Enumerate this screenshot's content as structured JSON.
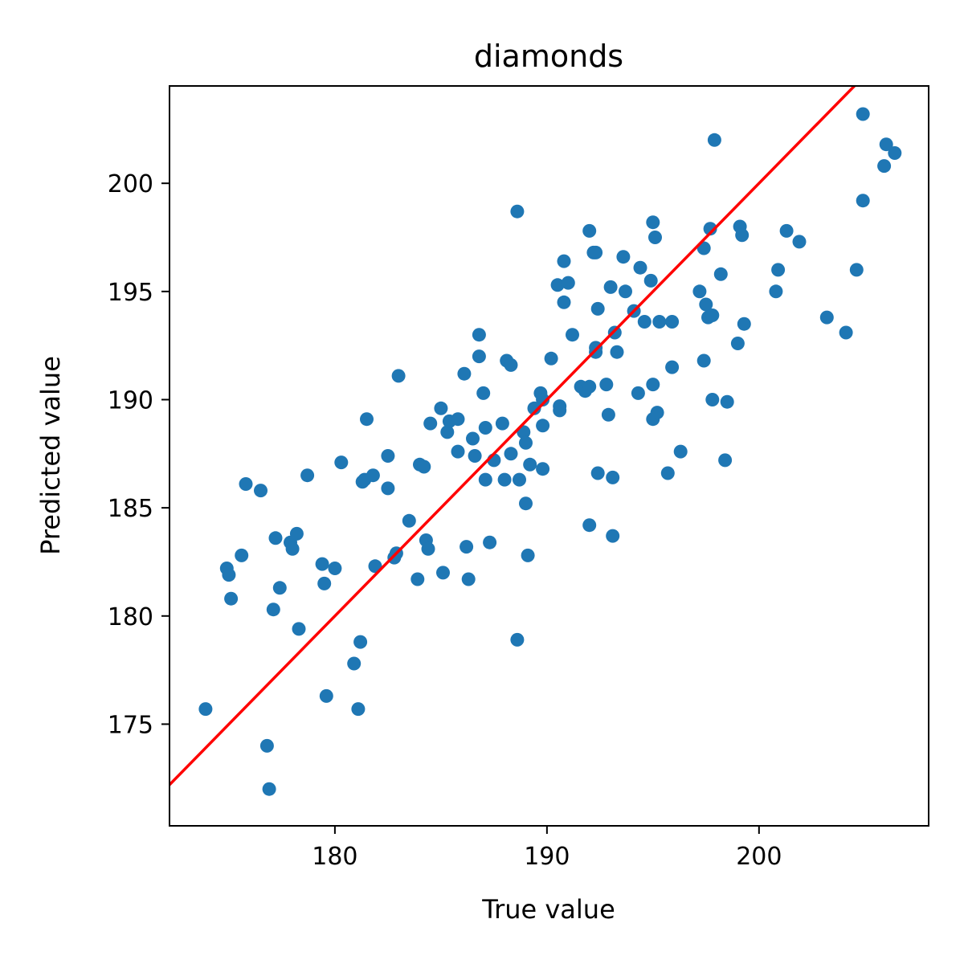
{
  "chart_data": {
    "type": "scatter",
    "title": "diamonds",
    "xlabel": "True value",
    "ylabel": "Predicted value",
    "xlim": [
      172.2,
      208.0
    ],
    "ylim": [
      170.3,
      204.5
    ],
    "xticks": [
      180,
      190,
      200
    ],
    "yticks": [
      175,
      180,
      185,
      190,
      195,
      200
    ],
    "grid": false,
    "point_color": "#1f77b4",
    "reference_line": {
      "label": "y = x",
      "color": "#ff0000",
      "slope": 1,
      "intercept": 0
    },
    "points": [
      [
        173.9,
        175.7
      ],
      [
        174.9,
        182.2
      ],
      [
        175.0,
        181.9
      ],
      [
        175.1,
        180.8
      ],
      [
        175.6,
        182.8
      ],
      [
        175.8,
        186.1
      ],
      [
        176.5,
        185.8
      ],
      [
        176.8,
        174.0
      ],
      [
        176.9,
        172.0
      ],
      [
        177.1,
        180.3
      ],
      [
        177.2,
        183.6
      ],
      [
        177.4,
        181.3
      ],
      [
        177.9,
        183.4
      ],
      [
        178.0,
        183.1
      ],
      [
        178.2,
        183.8
      ],
      [
        178.3,
        179.4
      ],
      [
        178.7,
        186.5
      ],
      [
        179.4,
        182.4
      ],
      [
        179.5,
        181.5
      ],
      [
        179.6,
        176.3
      ],
      [
        180.0,
        182.2
      ],
      [
        180.3,
        187.1
      ],
      [
        180.9,
        177.8
      ],
      [
        181.1,
        175.7
      ],
      [
        181.2,
        178.8
      ],
      [
        181.3,
        186.2
      ],
      [
        181.4,
        186.3
      ],
      [
        181.5,
        189.1
      ],
      [
        181.8,
        186.5
      ],
      [
        181.9,
        182.3
      ],
      [
        182.5,
        187.4
      ],
      [
        182.5,
        185.9
      ],
      [
        182.8,
        182.7
      ],
      [
        182.9,
        182.9
      ],
      [
        183.0,
        191.1
      ],
      [
        183.5,
        184.4
      ],
      [
        183.9,
        181.7
      ],
      [
        184.0,
        187.0
      ],
      [
        184.2,
        186.9
      ],
      [
        184.3,
        183.5
      ],
      [
        184.4,
        183.1
      ],
      [
        184.5,
        188.9
      ],
      [
        185.0,
        189.6
      ],
      [
        185.1,
        182.0
      ],
      [
        185.3,
        188.5
      ],
      [
        185.4,
        189.0
      ],
      [
        185.8,
        189.1
      ],
      [
        185.8,
        187.6
      ],
      [
        186.1,
        191.2
      ],
      [
        186.2,
        183.2
      ],
      [
        186.3,
        181.7
      ],
      [
        186.5,
        188.2
      ],
      [
        186.6,
        187.4
      ],
      [
        186.8,
        193.0
      ],
      [
        186.8,
        192.0
      ],
      [
        187.0,
        190.3
      ],
      [
        187.1,
        188.7
      ],
      [
        187.1,
        186.3
      ],
      [
        187.3,
        183.4
      ],
      [
        187.5,
        187.2
      ],
      [
        187.9,
        188.9
      ],
      [
        188.0,
        186.3
      ],
      [
        188.1,
        191.8
      ],
      [
        188.3,
        191.6
      ],
      [
        188.3,
        187.5
      ],
      [
        188.6,
        198.7
      ],
      [
        188.6,
        178.9
      ],
      [
        188.7,
        186.3
      ],
      [
        188.9,
        188.5
      ],
      [
        189.0,
        188.0
      ],
      [
        189.0,
        185.2
      ],
      [
        189.1,
        182.8
      ],
      [
        189.2,
        187.0
      ],
      [
        189.4,
        189.6
      ],
      [
        189.7,
        190.3
      ],
      [
        189.8,
        190.0
      ],
      [
        189.8,
        188.8
      ],
      [
        189.8,
        186.8
      ],
      [
        190.2,
        191.9
      ],
      [
        190.5,
        195.3
      ],
      [
        190.6,
        189.7
      ],
      [
        190.6,
        189.5
      ],
      [
        190.8,
        196.4
      ],
      [
        190.8,
        194.5
      ],
      [
        191.0,
        195.4
      ],
      [
        191.2,
        193.0
      ],
      [
        191.6,
        190.6
      ],
      [
        191.8,
        190.4
      ],
      [
        192.0,
        190.6
      ],
      [
        192.0,
        197.8
      ],
      [
        192.0,
        184.2
      ],
      [
        192.2,
        196.8
      ],
      [
        192.3,
        196.8
      ],
      [
        192.3,
        192.2
      ],
      [
        192.3,
        192.4
      ],
      [
        192.4,
        194.2
      ],
      [
        192.4,
        186.6
      ],
      [
        192.8,
        190.7
      ],
      [
        192.9,
        189.3
      ],
      [
        193.0,
        195.2
      ],
      [
        193.1,
        186.4
      ],
      [
        193.1,
        183.7
      ],
      [
        193.2,
        193.1
      ],
      [
        193.3,
        192.2
      ],
      [
        193.6,
        196.6
      ],
      [
        193.7,
        195.0
      ],
      [
        194.1,
        194.1
      ],
      [
        194.4,
        196.1
      ],
      [
        194.3,
        190.3
      ],
      [
        194.6,
        193.6
      ],
      [
        194.9,
        195.5
      ],
      [
        195.0,
        198.2
      ],
      [
        195.0,
        190.7
      ],
      [
        195.0,
        189.1
      ],
      [
        195.1,
        197.5
      ],
      [
        195.2,
        189.4
      ],
      [
        195.3,
        193.6
      ],
      [
        195.7,
        186.6
      ],
      [
        195.9,
        191.5
      ],
      [
        195.9,
        193.6
      ],
      [
        196.3,
        187.6
      ],
      [
        197.2,
        195.0
      ],
      [
        197.4,
        197.0
      ],
      [
        197.4,
        191.8
      ],
      [
        197.5,
        194.4
      ],
      [
        197.6,
        193.8
      ],
      [
        197.7,
        197.9
      ],
      [
        197.8,
        193.9
      ],
      [
        197.8,
        190.0
      ],
      [
        197.9,
        202.0
      ],
      [
        198.2,
        195.8
      ],
      [
        198.4,
        187.2
      ],
      [
        198.5,
        189.9
      ],
      [
        199.0,
        192.6
      ],
      [
        199.1,
        198.0
      ],
      [
        199.2,
        197.6
      ],
      [
        199.3,
        193.5
      ],
      [
        200.8,
        195.0
      ],
      [
        200.9,
        196.0
      ],
      [
        201.3,
        197.8
      ],
      [
        201.9,
        197.3
      ],
      [
        203.2,
        193.8
      ],
      [
        204.1,
        193.1
      ],
      [
        204.6,
        196.0
      ],
      [
        204.9,
        199.2
      ],
      [
        204.9,
        203.2
      ],
      [
        205.9,
        200.8
      ],
      [
        206.0,
        201.8
      ],
      [
        206.4,
        201.4
      ]
    ]
  }
}
